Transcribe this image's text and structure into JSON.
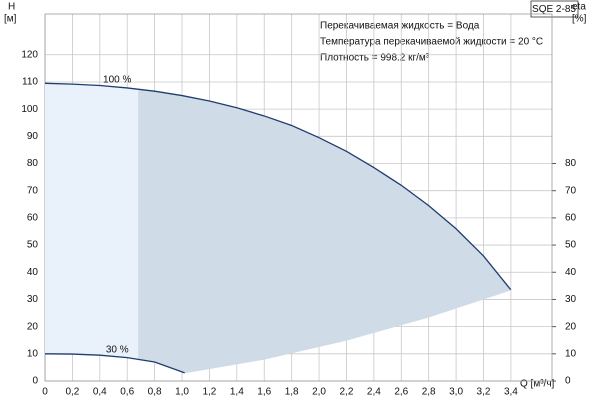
{
  "chart_data": {
    "type": "pump-curve",
    "title": "SQE 2-85",
    "annotations": [
      "Перекачиваемая жидкость = Вода",
      "Температура перекачиваемой жидкости = 20 °C",
      "Плотность = 998.2 кг/м³"
    ],
    "ylabel": "H",
    "yunit": "[м]",
    "y2label": "eta",
    "y2unit": "[%]",
    "xlabel": "Q [м³/ч]",
    "xlim": [
      0,
      3.7
    ],
    "xticks": [
      0,
      {
        "value": 0.2,
        "label": "0,2"
      },
      {
        "value": 0.4,
        "label": "0,4"
      },
      {
        "value": 0.6,
        "label": "0,6"
      },
      {
        "value": 0.8,
        "label": "0,8"
      },
      {
        "value": 1.0,
        "label": "1,0"
      },
      {
        "value": 1.2,
        "label": "1,2"
      },
      {
        "value": 1.4,
        "label": "1,4"
      },
      {
        "value": 1.6,
        "label": "1,6"
      },
      {
        "value": 1.8,
        "label": "1,8"
      },
      {
        "value": 2.0,
        "label": "2,0"
      },
      {
        "value": 2.2,
        "label": "2,2"
      },
      {
        "value": 2.4,
        "label": "2,4"
      },
      {
        "value": 2.6,
        "label": "2,6"
      },
      {
        "value": 2.8,
        "label": "2,8"
      },
      {
        "value": 3.0,
        "label": "3,0"
      },
      {
        "value": 3.2,
        "label": "3,2"
      },
      {
        "value": 3.4,
        "label": "3,4"
      }
    ],
    "ylim": [
      0,
      135
    ],
    "yticks": [
      0,
      10,
      20,
      30,
      40,
      50,
      60,
      70,
      80,
      90,
      100,
      110,
      120
    ],
    "y2lim": [
      0,
      135
    ],
    "y2ticks": [
      0,
      10,
      20,
      30,
      40,
      50,
      60,
      70,
      80
    ],
    "grid": true,
    "shade_split_x": 0.68,
    "fill_colors": [
      "#e9f1fb",
      "#cfdbe6"
    ],
    "series": [
      {
        "name": "100 %",
        "color": "#1f3d6e",
        "x": [
          0,
          0.2,
          0.4,
          0.6,
          0.8,
          1.0,
          1.2,
          1.4,
          1.6,
          1.8,
          2.0,
          2.2,
          2.4,
          2.6,
          2.8,
          3.0,
          3.2,
          3.4
        ],
        "values": [
          109.5,
          109.2,
          108.7,
          107.8,
          106.6,
          105,
          103,
          100.5,
          97.5,
          94,
          89.5,
          84.5,
          78.5,
          72,
          64.5,
          56,
          46,
          33.5
        ]
      },
      {
        "name": "30 %",
        "color": "#1f3d6e",
        "x": [
          0,
          0.2,
          0.4,
          0.6,
          0.8,
          1.02
        ],
        "values": [
          10,
          9.9,
          9.5,
          8.6,
          7,
          3
        ]
      },
      {
        "x": [
          1.02,
          1.6,
          2.2,
          2.8,
          3.4
        ],
        "values": [
          3,
          8,
          15,
          23.5,
          33.5
        ]
      }
    ]
  }
}
